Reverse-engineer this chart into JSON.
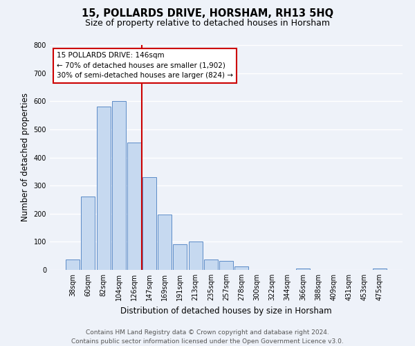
{
  "title": "15, POLLARDS DRIVE, HORSHAM, RH13 5HQ",
  "subtitle": "Size of property relative to detached houses in Horsham",
  "xlabel": "Distribution of detached houses by size in Horsham",
  "ylabel": "Number of detached properties",
  "bar_labels": [
    "38sqm",
    "60sqm",
    "82sqm",
    "104sqm",
    "126sqm",
    "147sqm",
    "169sqm",
    "191sqm",
    "213sqm",
    "235sqm",
    "257sqm",
    "278sqm",
    "300sqm",
    "322sqm",
    "344sqm",
    "366sqm",
    "388sqm",
    "409sqm",
    "431sqm",
    "453sqm",
    "475sqm"
  ],
  "bar_values": [
    38,
    262,
    580,
    601,
    452,
    330,
    196,
    91,
    100,
    38,
    32,
    12,
    0,
    0,
    0,
    5,
    0,
    0,
    0,
    0,
    5
  ],
  "bar_color": "#c6d9f0",
  "bar_edge_color": "#5b8bc7",
  "vline_color": "#cc0000",
  "vline_index": 4.5,
  "annotation_title": "15 POLLARDS DRIVE: 146sqm",
  "annotation_line1": "← 70% of detached houses are smaller (1,902)",
  "annotation_line2": "30% of semi-detached houses are larger (824) →",
  "annotation_box_color": "#ffffff",
  "annotation_box_edge_color": "#cc0000",
  "ylim": [
    0,
    800
  ],
  "yticks": [
    0,
    100,
    200,
    300,
    400,
    500,
    600,
    700,
    800
  ],
  "footer_line1": "Contains HM Land Registry data © Crown copyright and database right 2024.",
  "footer_line2": "Contains public sector information licensed under the Open Government Licence v3.0.",
  "bg_color": "#eef2f9",
  "grid_color": "#ffffff",
  "title_fontsize": 10.5,
  "subtitle_fontsize": 9,
  "axis_label_fontsize": 8.5,
  "tick_fontsize": 7,
  "annotation_fontsize": 7.5,
  "footer_fontsize": 6.5
}
